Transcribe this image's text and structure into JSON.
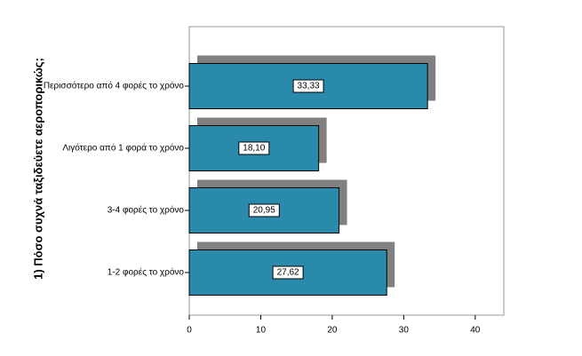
{
  "chart_data": {
    "type": "bar",
    "orientation": "horizontal",
    "y_label": "1) Πόσο συχνά ταξιδεύετε αεροπορικώς;",
    "categories": [
      "Περισσότερο από 4 φορές το χρόνο",
      "Λιγότερο από 1 φορά το χρόνο",
      "3-4 φορές το χρόνο",
      "1-2 φορές το χρόνο"
    ],
    "values": [
      33.33,
      18.1,
      20.95,
      27.62
    ],
    "value_labels": [
      "33,33",
      "18,10",
      "20,95",
      "27,62"
    ],
    "color": "#2a8aab",
    "shadow_color": "#808080",
    "xlim": [
      0,
      44
    ],
    "xticks": [
      0,
      10,
      20,
      30,
      40
    ]
  }
}
